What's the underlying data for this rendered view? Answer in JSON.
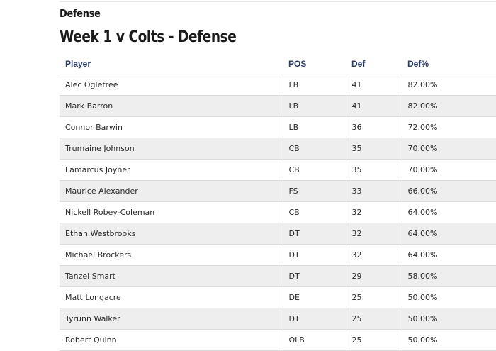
{
  "section_label": "Defense",
  "page_title": "Week 1 v Colts - Defense",
  "table": {
    "headers": {
      "player": "Player",
      "pos": "POS",
      "def": "Def",
      "def_pct": "Def%"
    },
    "rows": [
      {
        "player": "Alec Ogletree",
        "pos": "LB",
        "def": "41",
        "def_pct": "82.00%"
      },
      {
        "player": "Mark Barron",
        "pos": "LB",
        "def": "41",
        "def_pct": "82.00%"
      },
      {
        "player": "Connor Barwin",
        "pos": "LB",
        "def": "36",
        "def_pct": "72.00%"
      },
      {
        "player": "Trumaine Johnson",
        "pos": "CB",
        "def": "35",
        "def_pct": "70.00%"
      },
      {
        "player": "Lamarcus Joyner",
        "pos": "CB",
        "def": "35",
        "def_pct": "70.00%"
      },
      {
        "player": "Maurice Alexander",
        "pos": "FS",
        "def": "33",
        "def_pct": "66.00%"
      },
      {
        "player": "Nickell Robey-Coleman",
        "pos": "CB",
        "def": "32",
        "def_pct": "64.00%"
      },
      {
        "player": "Ethan Westbrooks",
        "pos": "DT",
        "def": "32",
        "def_pct": "64.00%"
      },
      {
        "player": "Michael Brockers",
        "pos": "DT",
        "def": "32",
        "def_pct": "64.00%"
      },
      {
        "player": "Tanzel Smart",
        "pos": "DT",
        "def": "29",
        "def_pct": "58.00%"
      },
      {
        "player": "Matt Longacre",
        "pos": "DE",
        "def": "25",
        "def_pct": "50.00%"
      },
      {
        "player": "Tyrunn Walker",
        "pos": "DT",
        "def": "25",
        "def_pct": "50.00%"
      },
      {
        "player": "Robert Quinn",
        "pos": "OLB",
        "def": "25",
        "def_pct": "50.00%"
      }
    ]
  }
}
